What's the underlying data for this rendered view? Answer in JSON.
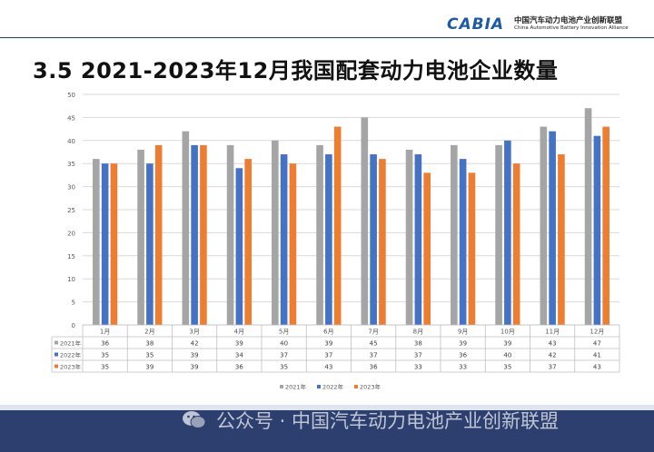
{
  "header": {
    "logo_text": "CABIA",
    "org_name_cn": "中国汽车动力电池产业创新联盟",
    "org_name_en": "China Automotive Battery Innovation Alliance",
    "accent_color": "#1b5aa6"
  },
  "page_title": "3.5  2021-2023年12月我国配套动力电池企业数量",
  "watermark": {
    "icon": "wechat-icon",
    "text": "公众号 · 中国汽车动力电池产业创新联盟"
  },
  "chart_data": {
    "type": "bar",
    "categories": [
      "1月",
      "2月",
      "3月",
      "4月",
      "5月",
      "6月",
      "7月",
      "8月",
      "9月",
      "10月",
      "11月",
      "12月"
    ],
    "series": [
      {
        "name": "2021年",
        "color": "#a5a5a5",
        "values": [
          36,
          38,
          42,
          39,
          40,
          39,
          45,
          38,
          39,
          39,
          43,
          47
        ]
      },
      {
        "name": "2022年",
        "color": "#4472c4",
        "values": [
          35,
          35,
          39,
          34,
          37,
          37,
          37,
          37,
          36,
          40,
          42,
          41
        ]
      },
      {
        "name": "2023年",
        "color": "#ed7d31",
        "values": [
          35,
          39,
          39,
          36,
          35,
          43,
          36,
          33,
          33,
          35,
          37,
          43
        ]
      }
    ],
    "y_ticks": [
      "0",
      "5",
      "10",
      "15",
      "20",
      "25",
      "30",
      "35",
      "40",
      "45",
      "50"
    ],
    "ylim": [
      0,
      50
    ],
    "grid": true,
    "legend_position": "bottom",
    "data_table": true
  }
}
